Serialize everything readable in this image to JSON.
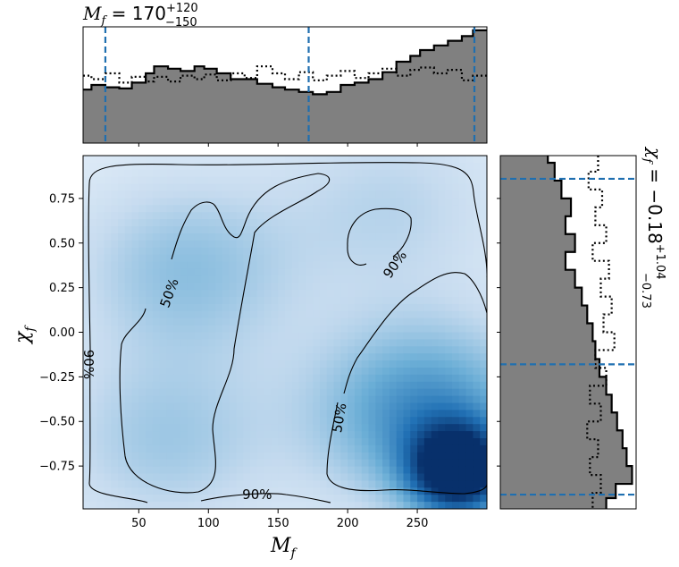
{
  "chart_data": [
    {
      "panel": "top-marginal",
      "type": "histogram",
      "title_symbol": "M",
      "title_sub": "f",
      "title_value": " = 170",
      "title_plus": "+120",
      "title_minus": "−150",
      "x_range": [
        10,
        300
      ],
      "quantile_lines_x": [
        26,
        172,
        291
      ],
      "solid_steps": [
        {
          "x0": 10,
          "x1": 16,
          "y": 0.46
        },
        {
          "x0": 16,
          "x1": 26,
          "y": 0.5
        },
        {
          "x0": 26,
          "x1": 36,
          "y": 0.48
        },
        {
          "x0": 36,
          "x1": 45,
          "y": 0.47
        },
        {
          "x0": 45,
          "x1": 55,
          "y": 0.52
        },
        {
          "x0": 55,
          "x1": 61,
          "y": 0.6
        },
        {
          "x0": 61,
          "x1": 71,
          "y": 0.66
        },
        {
          "x0": 71,
          "x1": 80,
          "y": 0.64
        },
        {
          "x0": 80,
          "x1": 90,
          "y": 0.62
        },
        {
          "x0": 90,
          "x1": 97,
          "y": 0.66
        },
        {
          "x0": 97,
          "x1": 106,
          "y": 0.64
        },
        {
          "x0": 106,
          "x1": 116,
          "y": 0.6
        },
        {
          "x0": 116,
          "x1": 126,
          "y": 0.55
        },
        {
          "x0": 126,
          "x1": 135,
          "y": 0.55
        },
        {
          "x0": 135,
          "x1": 146,
          "y": 0.51
        },
        {
          "x0": 146,
          "x1": 155,
          "y": 0.48
        },
        {
          "x0": 155,
          "x1": 165,
          "y": 0.46
        },
        {
          "x0": 165,
          "x1": 175,
          "y": 0.44
        },
        {
          "x0": 175,
          "x1": 185,
          "y": 0.42
        },
        {
          "x0": 185,
          "x1": 195,
          "y": 0.44
        },
        {
          "x0": 195,
          "x1": 205,
          "y": 0.5
        },
        {
          "x0": 205,
          "x1": 215,
          "y": 0.52
        },
        {
          "x0": 215,
          "x1": 225,
          "y": 0.55
        },
        {
          "x0": 225,
          "x1": 235,
          "y": 0.61
        },
        {
          "x0": 235,
          "x1": 245,
          "y": 0.7
        },
        {
          "x0": 245,
          "x1": 252,
          "y": 0.75
        },
        {
          "x0": 252,
          "x1": 262,
          "y": 0.8
        },
        {
          "x0": 262,
          "x1": 272,
          "y": 0.84
        },
        {
          "x0": 272,
          "x1": 282,
          "y": 0.88
        },
        {
          "x0": 282,
          "x1": 290,
          "y": 0.92
        },
        {
          "x0": 290,
          "x1": 300,
          "y": 0.97
        }
      ],
      "dotted_steps": [
        {
          "x0": 10,
          "x1": 16,
          "y": 0.58
        },
        {
          "x0": 16,
          "x1": 26,
          "y": 0.55
        },
        {
          "x0": 26,
          "x1": 36,
          "y": 0.6
        },
        {
          "x0": 36,
          "x1": 45,
          "y": 0.52
        },
        {
          "x0": 45,
          "x1": 55,
          "y": 0.57
        },
        {
          "x0": 55,
          "x1": 61,
          "y": 0.53
        },
        {
          "x0": 61,
          "x1": 71,
          "y": 0.57
        },
        {
          "x0": 71,
          "x1": 80,
          "y": 0.53
        },
        {
          "x0": 80,
          "x1": 90,
          "y": 0.58
        },
        {
          "x0": 90,
          "x1": 97,
          "y": 0.55
        },
        {
          "x0": 97,
          "x1": 106,
          "y": 0.59
        },
        {
          "x0": 106,
          "x1": 116,
          "y": 0.54
        },
        {
          "x0": 116,
          "x1": 126,
          "y": 0.6
        },
        {
          "x0": 126,
          "x1": 135,
          "y": 0.56
        },
        {
          "x0": 135,
          "x1": 146,
          "y": 0.66
        },
        {
          "x0": 146,
          "x1": 155,
          "y": 0.6
        },
        {
          "x0": 155,
          "x1": 165,
          "y": 0.55
        },
        {
          "x0": 165,
          "x1": 175,
          "y": 0.61
        },
        {
          "x0": 175,
          "x1": 185,
          "y": 0.54
        },
        {
          "x0": 185,
          "x1": 195,
          "y": 0.58
        },
        {
          "x0": 195,
          "x1": 205,
          "y": 0.62
        },
        {
          "x0": 205,
          "x1": 215,
          "y": 0.56
        },
        {
          "x0": 215,
          "x1": 225,
          "y": 0.6
        },
        {
          "x0": 225,
          "x1": 235,
          "y": 0.64
        },
        {
          "x0": 235,
          "x1": 245,
          "y": 0.58
        },
        {
          "x0": 245,
          "x1": 252,
          "y": 0.63
        },
        {
          "x0": 252,
          "x1": 262,
          "y": 0.65
        },
        {
          "x0": 262,
          "x1": 272,
          "y": 0.6
        },
        {
          "x0": 272,
          "x1": 282,
          "y": 0.63
        },
        {
          "x0": 282,
          "x1": 290,
          "y": 0.54
        },
        {
          "x0": 290,
          "x1": 300,
          "y": 0.58
        }
      ]
    },
    {
      "panel": "joint",
      "type": "heatmap",
      "xlabel": "M",
      "xlabel_sub": "f",
      "ylabel": "χ",
      "ylabel_sub": "f",
      "xlim": [
        10,
        300
      ],
      "ylim": [
        -0.99,
        0.99
      ],
      "xticks": [
        50,
        100,
        150,
        200,
        250
      ],
      "yticks": [
        0.75,
        0.5,
        0.25,
        0.0,
        -0.25,
        -0.5,
        -0.75
      ],
      "yticklabels": [
        "0.75",
        "0.50",
        "0.25",
        "0.00",
        "−0.25",
        "−0.50",
        "−0.75"
      ],
      "density_peaks": [
        {
          "x": 280,
          "y": -0.78,
          "weight": 1.0
        },
        {
          "x": 255,
          "y": -0.45,
          "weight": 0.55
        },
        {
          "x": 85,
          "y": 0.35,
          "weight": 0.3
        },
        {
          "x": 70,
          "y": -0.6,
          "weight": 0.25
        },
        {
          "x": 230,
          "y": 0.7,
          "weight": 0.18
        }
      ],
      "contour_labels": [
        {
          "text": "50%",
          "x": 72,
          "y": 0.22,
          "angle": -70
        },
        {
          "text": "90%",
          "x": 234,
          "y": 0.38,
          "angle": -55
        },
        {
          "text": "50%",
          "x": 194,
          "y": -0.48,
          "angle": -80
        },
        {
          "text": "90%",
          "x": 135,
          "y": -0.91,
          "angle": 0
        },
        {
          "text": "90%",
          "x": 14,
          "y": -0.18,
          "angle": 90
        }
      ]
    },
    {
      "panel": "right-marginal",
      "type": "histogram",
      "orientation": "horizontal",
      "title_symbol": "χ",
      "title_sub": "f",
      "title_value": " = −0.18",
      "title_plus": "+1.04",
      "title_minus": "−0.73",
      "y_range": [
        -0.99,
        0.99
      ],
      "quantile_lines_y": [
        0.86,
        -0.18,
        -0.91
      ],
      "solid_steps": [
        {
          "y0": 0.99,
          "y1": 0.95,
          "v": 0.35
        },
        {
          "y0": 0.95,
          "y1": 0.85,
          "v": 0.4
        },
        {
          "y0": 0.85,
          "y1": 0.75,
          "v": 0.45
        },
        {
          "y0": 0.75,
          "y1": 0.65,
          "v": 0.52
        },
        {
          "y0": 0.65,
          "y1": 0.55,
          "v": 0.48
        },
        {
          "y0": 0.55,
          "y1": 0.45,
          "v": 0.55
        },
        {
          "y0": 0.45,
          "y1": 0.35,
          "v": 0.48
        },
        {
          "y0": 0.35,
          "y1": 0.25,
          "v": 0.55
        },
        {
          "y0": 0.25,
          "y1": 0.15,
          "v": 0.6
        },
        {
          "y0": 0.15,
          "y1": 0.05,
          "v": 0.64
        },
        {
          "y0": 0.05,
          "y1": -0.05,
          "v": 0.68
        },
        {
          "y0": -0.05,
          "y1": -0.15,
          "v": 0.7
        },
        {
          "y0": -0.15,
          "y1": -0.25,
          "v": 0.73
        },
        {
          "y0": -0.25,
          "y1": -0.35,
          "v": 0.78
        },
        {
          "y0": -0.35,
          "y1": -0.45,
          "v": 0.82
        },
        {
          "y0": -0.45,
          "y1": -0.55,
          "v": 0.86
        },
        {
          "y0": -0.55,
          "y1": -0.65,
          "v": 0.9
        },
        {
          "y0": -0.65,
          "y1": -0.75,
          "v": 0.93
        },
        {
          "y0": -0.75,
          "y1": -0.85,
          "v": 0.97
        },
        {
          "y0": -0.85,
          "y1": -0.93,
          "v": 0.85
        },
        {
          "y0": -0.93,
          "y1": -0.99,
          "v": 0.78
        }
      ],
      "dotted_steps": [
        {
          "y0": 0.99,
          "y1": 0.9,
          "v": 0.72
        },
        {
          "y0": 0.9,
          "y1": 0.8,
          "v": 0.65
        },
        {
          "y0": 0.8,
          "y1": 0.7,
          "v": 0.75
        },
        {
          "y0": 0.7,
          "y1": 0.6,
          "v": 0.7
        },
        {
          "y0": 0.6,
          "y1": 0.5,
          "v": 0.78
        },
        {
          "y0": 0.5,
          "y1": 0.4,
          "v": 0.68
        },
        {
          "y0": 0.4,
          "y1": 0.3,
          "v": 0.8
        },
        {
          "y0": 0.3,
          "y1": 0.2,
          "v": 0.74
        },
        {
          "y0": 0.2,
          "y1": 0.1,
          "v": 0.82
        },
        {
          "y0": 0.1,
          "y1": 0.0,
          "v": 0.76
        },
        {
          "y0": 0.0,
          "y1": -0.1,
          "v": 0.84
        },
        {
          "y0": -0.1,
          "y1": -0.2,
          "v": 0.7
        },
        {
          "y0": -0.2,
          "y1": -0.3,
          "v": 0.78
        },
        {
          "y0": -0.3,
          "y1": -0.4,
          "v": 0.66
        },
        {
          "y0": -0.4,
          "y1": -0.5,
          "v": 0.74
        },
        {
          "y0": -0.5,
          "y1": -0.6,
          "v": 0.64
        },
        {
          "y0": -0.6,
          "y1": -0.7,
          "v": 0.72
        },
        {
          "y0": -0.7,
          "y1": -0.8,
          "v": 0.66
        },
        {
          "y0": -0.8,
          "y1": -0.9,
          "v": 0.74
        },
        {
          "y0": -0.9,
          "y1": -0.99,
          "v": 0.68
        }
      ]
    }
  ],
  "colors": {
    "hist_fill": "#808080",
    "quantile_line": "#1f6fb0",
    "cmap_low": "#f7fbff",
    "cmap_high": "#08306b"
  }
}
